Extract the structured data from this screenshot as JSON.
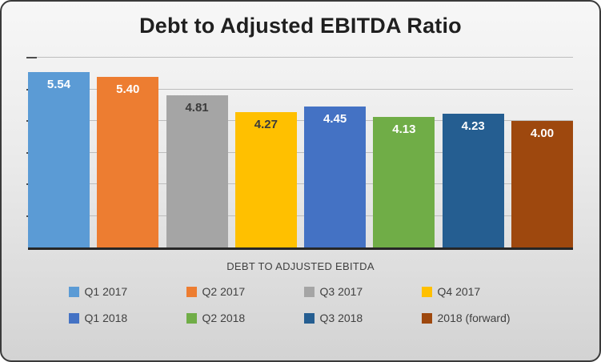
{
  "chart_data": {
    "type": "bar",
    "title": "Debt to Adjusted EBITDA Ratio",
    "xlabel": "DEBT TO ADJUSTED EBITDA",
    "ylabel": "",
    "ylim": [
      0,
      6
    ],
    "gridline_step": 1,
    "grid": true,
    "legend_position": "bottom",
    "categories": [
      "Q1 2017",
      "Q2 2017",
      "Q3 2017",
      "Q4 2017",
      "Q1 2018",
      "Q2 2018",
      "Q3 2018",
      "2018 (forward)"
    ],
    "values": [
      5.54,
      5.4,
      4.81,
      4.27,
      4.45,
      4.13,
      4.23,
      4.0
    ],
    "series": [
      {
        "name": "Q1 2017",
        "value": 5.54,
        "label": "5.54",
        "color": "#5B9BD5",
        "label_color": "#FFFFFF"
      },
      {
        "name": "Q2 2017",
        "value": 5.4,
        "label": "5.40",
        "color": "#ED7D31",
        "label_color": "#FFFFFF"
      },
      {
        "name": "Q3 2017",
        "value": 4.81,
        "label": "4.81",
        "color": "#A5A5A5",
        "label_color": "#3B3B3B"
      },
      {
        "name": "Q4 2017",
        "value": 4.27,
        "label": "4.27",
        "color": "#FFC000",
        "label_color": "#3B3B3B"
      },
      {
        "name": "Q1 2018",
        "value": 4.45,
        "label": "4.45",
        "color": "#4472C4",
        "label_color": "#FFFFFF"
      },
      {
        "name": "Q2 2018",
        "value": 4.13,
        "label": "4.13",
        "color": "#70AD47",
        "label_color": "#FFFFFF"
      },
      {
        "name": "Q3 2018",
        "value": 4.23,
        "label": "4.23",
        "color": "#255E91",
        "label_color": "#FFFFFF"
      },
      {
        "name": "2018 (forward)",
        "value": 4.0,
        "label": "4.00",
        "color": "#9E480E",
        "label_color": "#FFFFFF"
      }
    ]
  }
}
